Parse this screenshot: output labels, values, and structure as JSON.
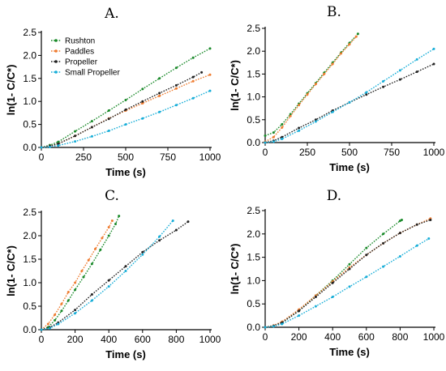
{
  "chart_data": [
    {
      "type": "line",
      "title": "A.",
      "xlabel": "Time (s)",
      "ylabel": "ln(1- C/C*)",
      "xlim": [
        0,
        1000
      ],
      "ylim": [
        0,
        2.5
      ],
      "xticks": [
        "0",
        "250",
        "500",
        "750",
        "1000"
      ],
      "yticks": [
        "0.0",
        "0.5",
        "1.0",
        "1.5",
        "2.0",
        "2.5"
      ],
      "legend": "top-left",
      "series": [
        {
          "name": "Rushton",
          "color": "#1a8a2a",
          "x": [
            0,
            50,
            100,
            200,
            300,
            400,
            500,
            600,
            700,
            800,
            900,
            1000
          ],
          "y": [
            0,
            0.05,
            0.12,
            0.35,
            0.57,
            0.8,
            1.03,
            1.27,
            1.5,
            1.73,
            1.95,
            2.15
          ]
        },
        {
          "name": "Paddles",
          "color": "#ef7d32",
          "x": [
            0,
            50,
            100,
            200,
            300,
            400,
            500,
            600,
            700,
            800,
            900,
            1000
          ],
          "y": [
            0,
            0.03,
            0.08,
            0.25,
            0.44,
            0.63,
            0.8,
            0.96,
            1.12,
            1.28,
            1.44,
            1.58
          ]
        },
        {
          "name": "Propeller",
          "color": "#222222",
          "x": [
            0,
            50,
            100,
            200,
            300,
            400,
            500,
            600,
            700,
            800,
            900,
            950
          ],
          "y": [
            0,
            0.03,
            0.08,
            0.25,
            0.44,
            0.62,
            0.82,
            1.0,
            1.18,
            1.35,
            1.53,
            1.63
          ]
        },
        {
          "name": "Small Propeller",
          "color": "#18aed8",
          "x": [
            0,
            50,
            100,
            200,
            300,
            400,
            500,
            600,
            700,
            800,
            900,
            1000
          ],
          "y": [
            0,
            0.01,
            0.04,
            0.13,
            0.24,
            0.36,
            0.5,
            0.63,
            0.77,
            0.92,
            1.07,
            1.23
          ]
        }
      ]
    },
    {
      "type": "line",
      "title": "B.",
      "xlabel": "Time (s)",
      "ylabel": "ln(1- C/C*)",
      "xlim": [
        0,
        1000
      ],
      "ylim": [
        0,
        2.5
      ],
      "xticks": [
        "0",
        "250",
        "500",
        "750",
        "1000"
      ],
      "yticks": [
        "0.0",
        "0.5",
        "1.0",
        "1.5",
        "2.0",
        "2.5"
      ],
      "series": [
        {
          "name": "Rushton",
          "color": "#1a8a2a",
          "x": [
            0,
            50,
            100,
            150,
            200,
            250,
            300,
            350,
            400,
            450,
            500,
            550
          ],
          "y": [
            0.15,
            0.22,
            0.4,
            0.62,
            0.85,
            1.08,
            1.3,
            1.53,
            1.75,
            1.97,
            2.18,
            2.38
          ]
        },
        {
          "name": "Paddles",
          "color": "#ef7d32",
          "x": [
            0,
            50,
            100,
            150,
            200,
            250,
            300,
            350,
            400,
            450,
            500,
            540
          ],
          "y": [
            0.02,
            0.12,
            0.33,
            0.58,
            0.82,
            1.05,
            1.28,
            1.5,
            1.72,
            1.95,
            2.15,
            2.32
          ]
        },
        {
          "name": "Propeller",
          "color": "#222222",
          "x": [
            0,
            50,
            100,
            200,
            300,
            400,
            500,
            600,
            700,
            800,
            900,
            1000
          ],
          "y": [
            0,
            0.04,
            0.12,
            0.32,
            0.5,
            0.7,
            0.88,
            1.05,
            1.22,
            1.38,
            1.55,
            1.72
          ]
        },
        {
          "name": "Small Propeller",
          "color": "#18aed8",
          "x": [
            0,
            50,
            100,
            200,
            300,
            400,
            500,
            600,
            700,
            800,
            900,
            1000
          ],
          "y": [
            0,
            0.02,
            0.08,
            0.26,
            0.46,
            0.67,
            0.88,
            1.1,
            1.34,
            1.58,
            1.82,
            2.05
          ]
        }
      ]
    },
    {
      "type": "line",
      "title": "C.",
      "xlabel": "Time (s)",
      "ylabel": "ln(1- C/C*)",
      "xlim": [
        0,
        1000
      ],
      "ylim": [
        0,
        2.5
      ],
      "xticks": [
        "0",
        "200",
        "400",
        "600",
        "800",
        "1000"
      ],
      "yticks": [
        "0.0",
        "0.5",
        "1.0",
        "1.5",
        "2.0",
        "2.5"
      ],
      "series": [
        {
          "name": "Rushton",
          "color": "#1a8a2a",
          "x": [
            0,
            40,
            80,
            120,
            160,
            200,
            250,
            300,
            350,
            400,
            440,
            460
          ],
          "y": [
            0,
            0.05,
            0.2,
            0.4,
            0.62,
            0.85,
            1.12,
            1.4,
            1.7,
            2.0,
            2.25,
            2.42
          ]
        },
        {
          "name": "Paddles",
          "color": "#ef7d32",
          "x": [
            0,
            40,
            80,
            120,
            160,
            200,
            240,
            280,
            320,
            360,
            400,
            420
          ],
          "y": [
            0,
            0.12,
            0.32,
            0.55,
            0.8,
            1.0,
            1.25,
            1.48,
            1.72,
            1.95,
            2.18,
            2.32
          ]
        },
        {
          "name": "Propeller",
          "color": "#222222",
          "x": [
            0,
            50,
            100,
            200,
            300,
            400,
            500,
            600,
            700,
            800,
            870
          ],
          "y": [
            0,
            0.05,
            0.15,
            0.42,
            0.75,
            1.05,
            1.35,
            1.65,
            1.9,
            2.12,
            2.3
          ]
        },
        {
          "name": "Small Propeller",
          "color": "#18aed8",
          "x": [
            0,
            50,
            100,
            200,
            300,
            400,
            500,
            600,
            700,
            780
          ],
          "y": [
            0,
            0.03,
            0.12,
            0.35,
            0.62,
            0.92,
            1.25,
            1.6,
            1.98,
            2.32
          ]
        }
      ]
    },
    {
      "type": "line",
      "title": "D.",
      "xlabel": "Time (s)",
      "ylabel": "ln(1- C/C*)",
      "xlim": [
        0,
        1000
      ],
      "ylim": [
        0,
        2.5
      ],
      "xticks": [
        "0",
        "200",
        "400",
        "600",
        "800",
        "1000"
      ],
      "yticks": [
        "0.0",
        "0.5",
        "1.0",
        "1.5",
        "2.0",
        "2.5"
      ],
      "series": [
        {
          "name": "Rushton",
          "color": "#1a8a2a",
          "x": [
            0,
            50,
            100,
            200,
            300,
            400,
            500,
            600,
            700,
            800,
            810
          ],
          "y": [
            0,
            0.03,
            0.1,
            0.35,
            0.68,
            1.0,
            1.35,
            1.7,
            2.0,
            2.28,
            2.3
          ]
        },
        {
          "name": "Paddles",
          "color": "#ef7d32",
          "x": [
            0,
            50,
            100,
            200,
            300,
            400,
            500,
            600,
            700,
            800,
            900,
            980
          ],
          "y": [
            0,
            0.04,
            0.12,
            0.38,
            0.68,
            0.98,
            1.28,
            1.55,
            1.8,
            2.02,
            2.2,
            2.33
          ]
        },
        {
          "name": "Propeller",
          "color": "#222222",
          "x": [
            0,
            50,
            100,
            200,
            300,
            400,
            500,
            600,
            700,
            800,
            900,
            980
          ],
          "y": [
            0,
            0.03,
            0.1,
            0.35,
            0.65,
            0.95,
            1.25,
            1.55,
            1.8,
            2.02,
            2.2,
            2.3
          ]
        },
        {
          "name": "Small Propeller",
          "color": "#18aed8",
          "x": [
            0,
            50,
            100,
            200,
            300,
            400,
            500,
            600,
            700,
            800,
            900,
            970
          ],
          "y": [
            0,
            0.02,
            0.07,
            0.25,
            0.45,
            0.65,
            0.87,
            1.08,
            1.3,
            1.52,
            1.75,
            1.9
          ]
        }
      ]
    }
  ]
}
